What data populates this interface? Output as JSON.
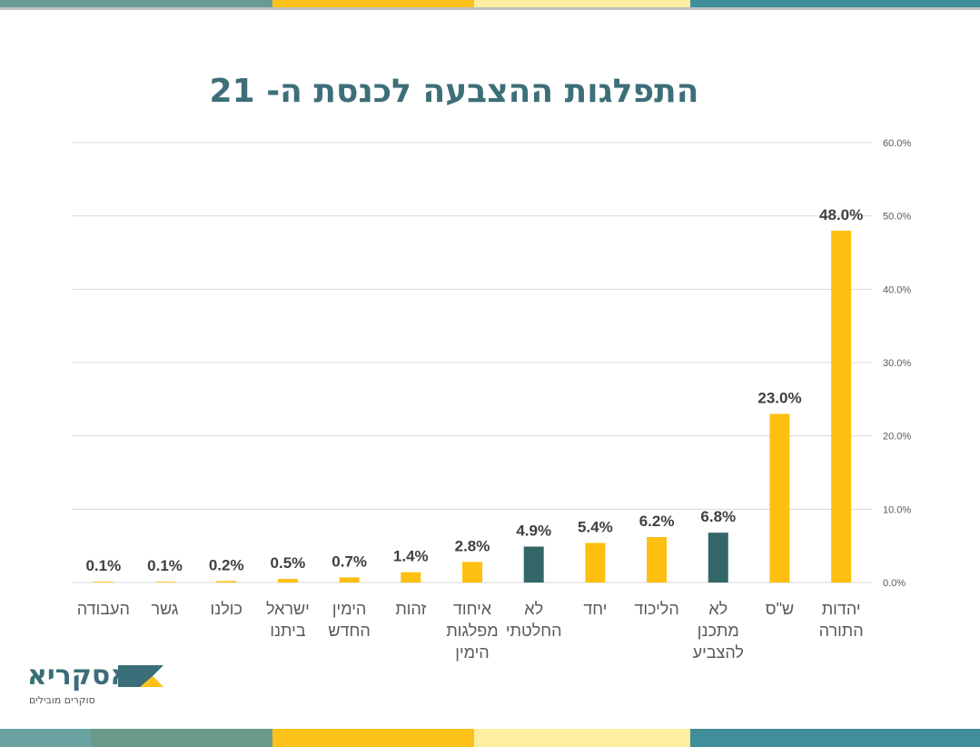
{
  "chart_data": {
    "type": "bar",
    "title": "התפלגות ההצבעה לכנסת ה- 21",
    "categories": [
      "יהדות התורה",
      "ש\"ס",
      "לא מתכנן להצביע",
      "הליכוד",
      "יחד",
      "לא החלטתי",
      "איחוד מפלגות הימין",
      "זהות",
      "הימין החדש",
      "ישראל ביתנו",
      "כולנו",
      "גשר",
      "העבודה"
    ],
    "category_lines": [
      [
        "יהדות",
        "התורה"
      ],
      [
        "ש\"ס"
      ],
      [
        "לא",
        "מתכנן",
        "להצביע"
      ],
      [
        "הליכוד"
      ],
      [
        "יחד"
      ],
      [
        "לא",
        "החלטתי"
      ],
      [
        "איחוד",
        "מפלגות",
        "הימין"
      ],
      [
        "זהות"
      ],
      [
        "הימין",
        "החדש"
      ],
      [
        "ישראל",
        "ביתנו"
      ],
      [
        "כולנו"
      ],
      [
        "גשר"
      ],
      [
        "העבודה"
      ]
    ],
    "values": [
      48.0,
      23.0,
      6.8,
      6.2,
      5.4,
      4.9,
      2.8,
      1.4,
      0.7,
      0.5,
      0.2,
      0.1,
      0.1
    ],
    "data_labels": [
      "48.0%",
      "23.0%",
      "6.8%",
      "6.2%",
      "5.4%",
      "4.9%",
      "2.8%",
      "1.4%",
      "0.7%",
      "0.5%",
      "0.2%",
      "0.1%",
      "0.1%"
    ],
    "bar_colors": [
      "#FDC010",
      "#FDC010",
      "#336666",
      "#FDC010",
      "#FDC010",
      "#336666",
      "#FDC010",
      "#FDC010",
      "#FDC010",
      "#FDC010",
      "#FDC010",
      "#FDC010",
      "#FDC010"
    ],
    "ylim": [
      0,
      60
    ],
    "y_ticks": [
      0,
      10,
      20,
      30,
      40,
      50,
      60
    ],
    "y_tick_labels": [
      "0.0%",
      "10.0%",
      "20.0%",
      "30.0%",
      "40.0%",
      "50.0%",
      "60.0%"
    ],
    "y_axis_side": "right",
    "x_direction": "right-to-left",
    "grid": true,
    "xlabel": "",
    "ylabel": ""
  },
  "logo": {
    "name": "אסקריא",
    "tagline": "סוקרים מובילים"
  },
  "colors": {
    "accent_yellow": "#FDC010",
    "accent_teal": "#336666",
    "title": "#3d6f78"
  }
}
